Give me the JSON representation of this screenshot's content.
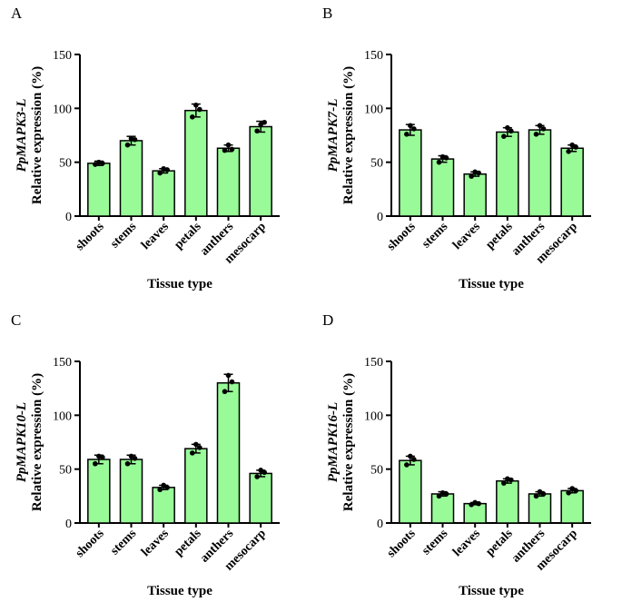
{
  "colors": {
    "bar_fill": "#98fb98",
    "bar_stroke": "#000000",
    "axis": "#000000"
  },
  "chart_data": [
    {
      "type": "bar",
      "panel_letter": "A",
      "gene": "PpMAPK3-L",
      "ylabel": "Relative expression (%)",
      "xlabel": "Tissue type",
      "categories": [
        "shoots",
        "stems",
        "leaves",
        "petals",
        "anthers",
        "mesocarp"
      ],
      "values": [
        49,
        70,
        42,
        98,
        63,
        83
      ],
      "errors": [
        2,
        4,
        2,
        6,
        3,
        5
      ],
      "points": [
        [
          48,
          50,
          49
        ],
        [
          66,
          72,
          71
        ],
        [
          40,
          44,
          43
        ],
        [
          92,
          103,
          99
        ],
        [
          61,
          66,
          62
        ],
        [
          79,
          85,
          87
        ]
      ],
      "ylim": [
        0,
        150
      ],
      "yticks": [
        "0",
        "50",
        "100",
        "150"
      ]
    },
    {
      "type": "bar",
      "panel_letter": "B",
      "gene": "PpMAPK7-L",
      "ylabel": "Relative expression (%)",
      "xlabel": "Tissue type",
      "categories": [
        "shoots",
        "stems",
        "leaves",
        "petals",
        "anthers",
        "mesocarp"
      ],
      "values": [
        80,
        53,
        39,
        78,
        80,
        63
      ],
      "errors": [
        5,
        3,
        2,
        4,
        4,
        3
      ],
      "points": [
        [
          76,
          84,
          81
        ],
        [
          50,
          55,
          54
        ],
        [
          37,
          41,
          40
        ],
        [
          74,
          82,
          79
        ],
        [
          76,
          84,
          81
        ],
        [
          60,
          66,
          64
        ]
      ],
      "ylim": [
        0,
        150
      ],
      "yticks": [
        "0",
        "50",
        "100",
        "150"
      ]
    },
    {
      "type": "bar",
      "panel_letter": "C",
      "gene": "PpMAPK10-L",
      "ylabel": "Relative expression (%)",
      "xlabel": "Tissue type",
      "categories": [
        "shoots",
        "stems",
        "leaves",
        "petals",
        "anthers",
        "mesocarp"
      ],
      "values": [
        59,
        59,
        33,
        69,
        130,
        46
      ],
      "errors": [
        4,
        4,
        2,
        4,
        8,
        3
      ],
      "points": [
        [
          55,
          62,
          61
        ],
        [
          55,
          62,
          60
        ],
        [
          31,
          35,
          33
        ],
        [
          65,
          73,
          70
        ],
        [
          122,
          137,
          131
        ],
        [
          43,
          49,
          47
        ]
      ],
      "ylim": [
        0,
        150
      ],
      "yticks": [
        "0",
        "50",
        "100",
        "150"
      ]
    },
    {
      "type": "bar",
      "panel_letter": "D",
      "gene": "PpMAPK16-L",
      "ylabel": "Relative expression (%)",
      "xlabel": "Tissue type",
      "categories": [
        "shoots",
        "stems",
        "leaves",
        "petals",
        "anthers",
        "mesocarp"
      ],
      "values": [
        58,
        27,
        18,
        39,
        27,
        30
      ],
      "errors": [
        4,
        2,
        1,
        2,
        2,
        2
      ],
      "points": [
        [
          54,
          62,
          59
        ],
        [
          25,
          28,
          27
        ],
        [
          17,
          19,
          18
        ],
        [
          37,
          41,
          40
        ],
        [
          25,
          29,
          27
        ],
        [
          28,
          32,
          30
        ]
      ],
      "ylim": [
        0,
        150
      ],
      "yticks": [
        "0",
        "50",
        "100",
        "150"
      ]
    }
  ]
}
